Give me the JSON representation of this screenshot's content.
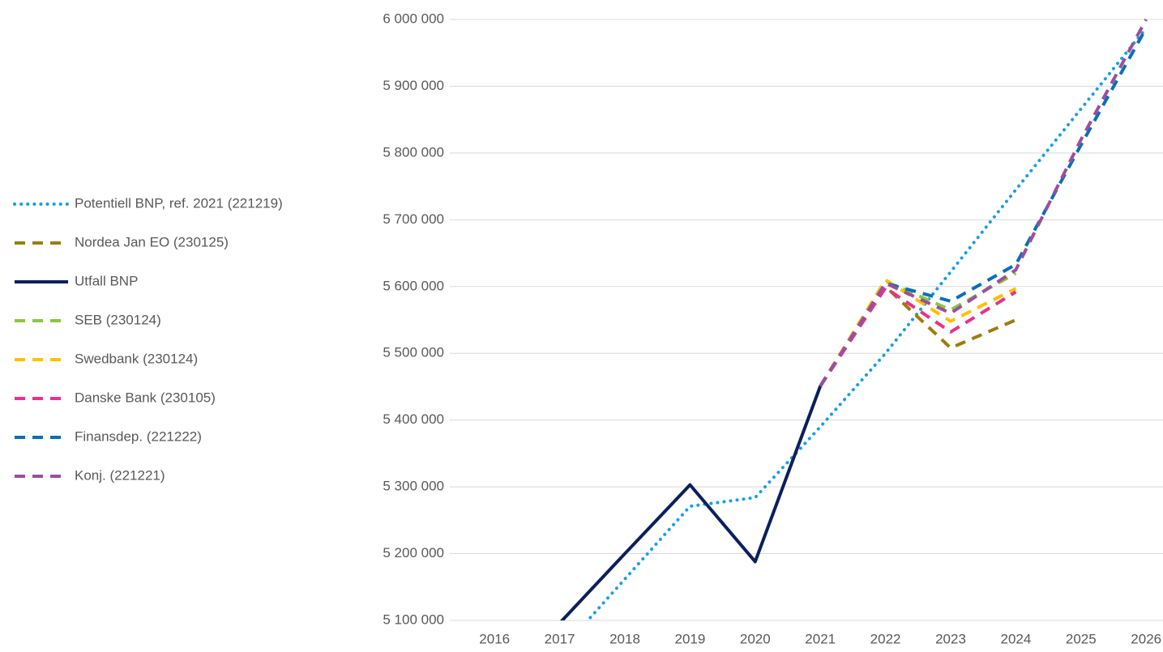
{
  "chart_data": {
    "type": "line",
    "categories": [
      "2016",
      "2017",
      "2018",
      "2019",
      "2020",
      "2021",
      "2022",
      "2023",
      "2024",
      "2025",
      "2026"
    ],
    "ylim": [
      5100000,
      6000000
    ],
    "yticks": [
      {
        "value": 5100000,
        "label": "5 100 000"
      },
      {
        "value": 5200000,
        "label": "5 200 000"
      },
      {
        "value": 5300000,
        "label": "5 300 000"
      },
      {
        "value": 5400000,
        "label": "5 400 000"
      },
      {
        "value": 5500000,
        "label": "5 500 000"
      },
      {
        "value": 5600000,
        "label": "5 600 000"
      },
      {
        "value": 5700000,
        "label": "5 700 000"
      },
      {
        "value": 5800000,
        "label": "5 800 000"
      },
      {
        "value": 5900000,
        "label": "5 900 000"
      },
      {
        "value": 6000000,
        "label": "6 000 000"
      }
    ],
    "grid": true,
    "legend": "left",
    "series": [
      {
        "name": "Potentiell BNP, ref. 2021 (221219)",
        "color": "#1a9ee0",
        "dash": "dot",
        "values": [
          null,
          5053000,
          5162000,
          5271000,
          5284000,
          5390000,
          5500000,
          5622000,
          5745000,
          5866000,
          5987000
        ]
      },
      {
        "name": "Nordea Jan EO (230125)",
        "color": "#9c7d0c",
        "dash": "dash",
        "values": [
          null,
          null,
          null,
          null,
          null,
          5451000,
          5600000,
          5508000,
          5550000,
          null,
          null
        ]
      },
      {
        "name": "Utfall BNP",
        "color": "#0b1f5c",
        "dash": "solid",
        "values": [
          null,
          5096000,
          5200000,
          5303000,
          5188000,
          5451000,
          null,
          null,
          null,
          null,
          null
        ]
      },
      {
        "name": "SEB (230124)",
        "color": "#8dc63f",
        "dash": "dash",
        "values": [
          null,
          null,
          null,
          null,
          null,
          5451000,
          5608000,
          5565000,
          5620000,
          null,
          null
        ]
      },
      {
        "name": "Swedbank (230124)",
        "color": "#ffc000",
        "dash": "dash",
        "values": [
          null,
          null,
          null,
          null,
          null,
          5451000,
          5610000,
          5548000,
          5597000,
          null,
          null
        ]
      },
      {
        "name": "Danske Bank (230105)",
        "color": "#e8318a",
        "dash": "dash",
        "values": [
          null,
          null,
          null,
          null,
          null,
          5451000,
          5598000,
          5532000,
          5592000,
          null,
          null
        ]
      },
      {
        "name": "Finansdep. (221222)",
        "color": "#0a6fb5",
        "dash": "dash",
        "values": [
          null,
          null,
          null,
          null,
          null,
          5451000,
          5605000,
          5578000,
          5633000,
          5812000,
          5987000
        ]
      },
      {
        "name": "Konj. (221221)",
        "color": "#9b4f9e",
        "dash": "dash",
        "values": [
          null,
          null,
          null,
          null,
          null,
          5451000,
          5605000,
          5560000,
          5625000,
          5820000,
          6000000
        ]
      }
    ]
  }
}
